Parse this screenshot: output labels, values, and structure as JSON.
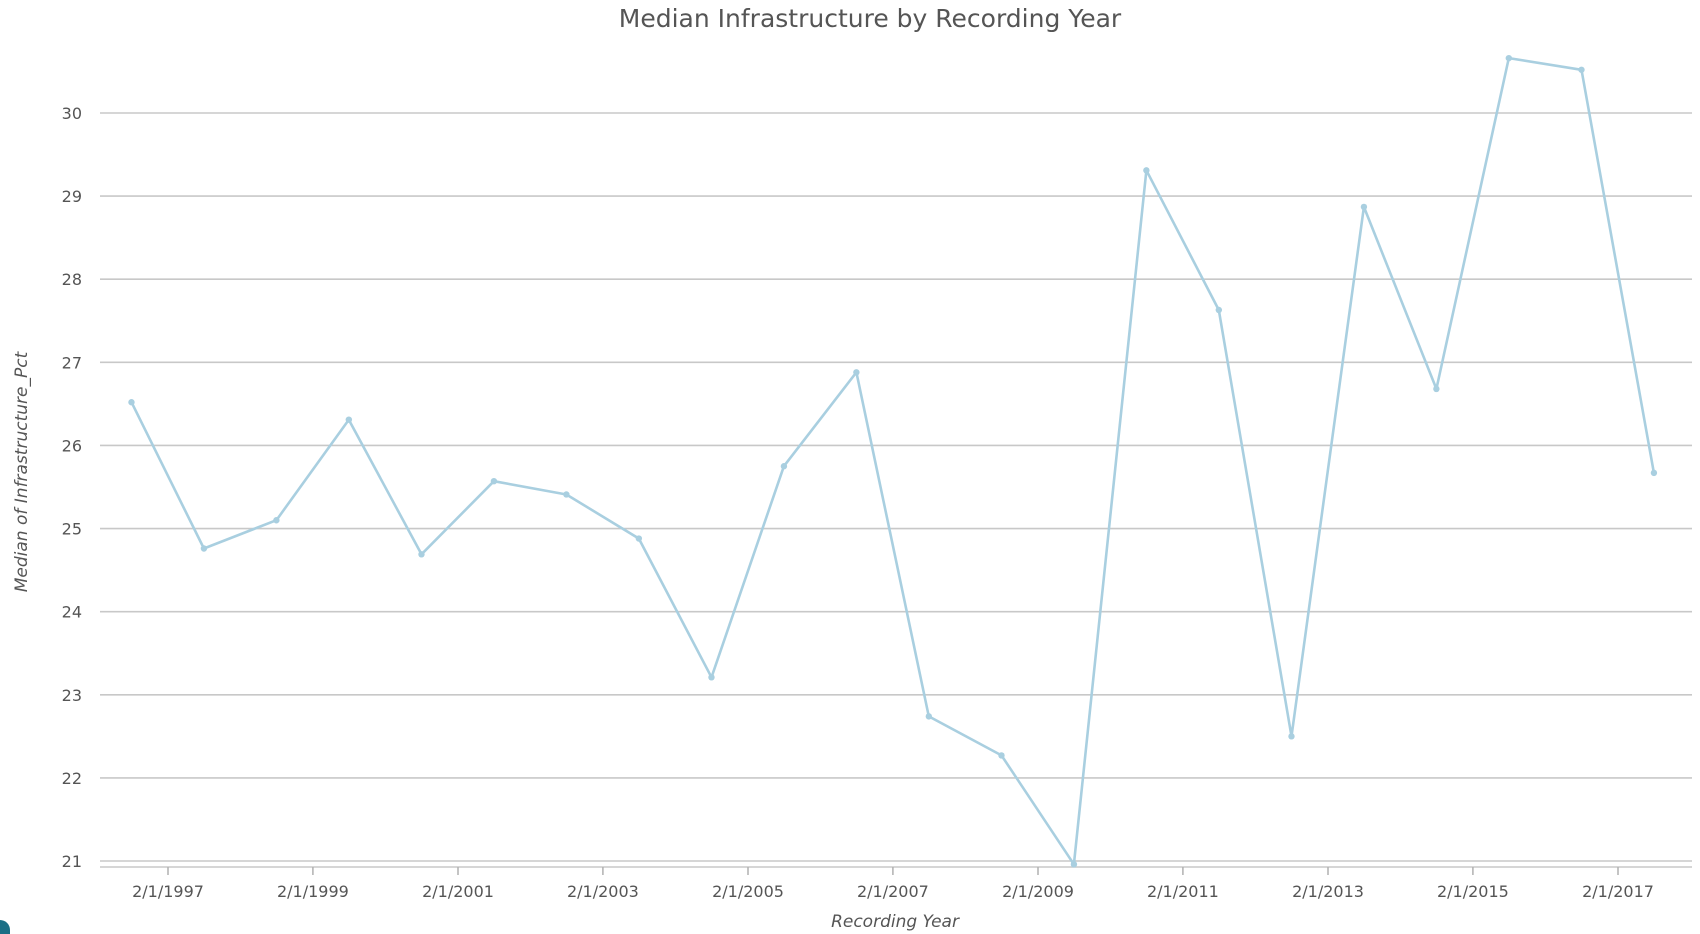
{
  "chart_data": {
    "type": "line",
    "title": "Median Infrastructure by Recording Year",
    "xlabel": "Recording Year",
    "ylabel": "Median of Infrastructure_Pct",
    "ylim": [
      21,
      30.5
    ],
    "yticks": [
      21,
      22,
      23,
      24,
      25,
      26,
      27,
      28,
      29,
      30
    ],
    "xlim": [
      "1996-01-01",
      "2017-12-31"
    ],
    "xticks": [
      "1997-02-01",
      "1999-02-01",
      "2001-02-01",
      "2003-02-01",
      "2005-02-01",
      "2007-02-01",
      "2009-02-01",
      "2011-02-01",
      "2013-02-01",
      "2015-02-01",
      "2017-02-01"
    ],
    "xtick_labels": [
      "2/1/1997",
      "2/1/1999",
      "2/1/2001",
      "2/1/2003",
      "2/1/2005",
      "2/1/2007",
      "2/1/2009",
      "2/1/2011",
      "2/1/2013",
      "2/1/2015",
      "2/1/2017"
    ],
    "grid": true,
    "series": [
      {
        "color": "#a9cfe0",
        "points": [
          {
            "x": "1996-08-01",
            "y": 26.52
          },
          {
            "x": "1997-08-01",
            "y": 24.76
          },
          {
            "x": "1998-08-01",
            "y": 25.1
          },
          {
            "x": "1999-08-01",
            "y": 26.31
          },
          {
            "x": "2000-08-01",
            "y": 24.69
          },
          {
            "x": "2001-08-01",
            "y": 25.57
          },
          {
            "x": "2002-08-01",
            "y": 25.41
          },
          {
            "x": "2003-08-01",
            "y": 24.88
          },
          {
            "x": "2004-08-01",
            "y": 23.21
          },
          {
            "x": "2005-08-01",
            "y": 25.75
          },
          {
            "x": "2006-08-01",
            "y": 26.88
          },
          {
            "x": "2007-08-01",
            "y": 22.74
          },
          {
            "x": "2008-08-01",
            "y": 22.27
          },
          {
            "x": "2009-08-01",
            "y": 20.96
          },
          {
            "x": "2010-08-01",
            "y": 29.31
          },
          {
            "x": "2011-08-01",
            "y": 27.63
          },
          {
            "x": "2012-08-01",
            "y": 22.5
          },
          {
            "x": "2013-08-01",
            "y": 28.87
          },
          {
            "x": "2014-08-01",
            "y": 26.68
          },
          {
            "x": "2015-08-01",
            "y": 30.66
          },
          {
            "x": "2016-08-01",
            "y": 30.52
          },
          {
            "x": "2017-08-01",
            "y": 25.67
          }
        ]
      }
    ]
  }
}
